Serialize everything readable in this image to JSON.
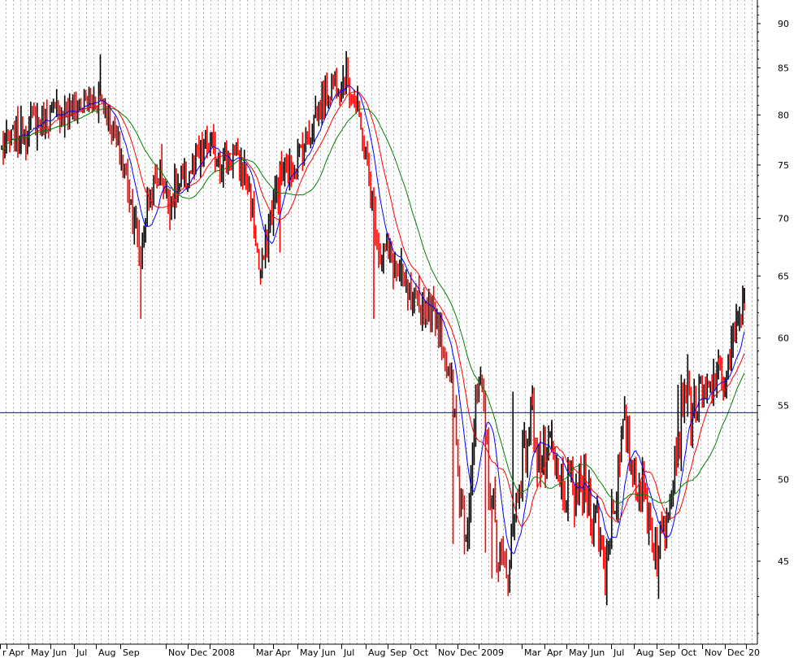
{
  "chart_data": {
    "type": "line",
    "y_scale": "log",
    "ylim": [
      40.5,
      95
    ],
    "yticks": [
      45,
      50,
      55,
      60,
      65,
      70,
      75,
      80,
      85,
      90
    ],
    "ytick_labels": [
      "45",
      "50",
      "55",
      "60",
      "65",
      "70",
      "75",
      "80",
      "85",
      "90"
    ],
    "xtick_labels": [
      "r",
      "Apr",
      "May",
      "Jun",
      "Jul",
      "Aug",
      "Sep",
      "Nov",
      "Dec",
      "2008",
      "Mar",
      "Apr",
      "May",
      "Jun",
      "Jul",
      "Aug",
      "Sep",
      "Oct",
      "Nov",
      "Dec",
      "2009",
      "Mar",
      "Apr",
      "May",
      "Jun",
      "Jul",
      "Aug",
      "Sep",
      "Oct",
      "Nov",
      "Dec",
      "20"
    ],
    "grid": {
      "vertical_dashed": true,
      "horizontal": false
    },
    "horizontal_line": {
      "value": 54.5,
      "color": "#0000ff"
    },
    "colors": {
      "up_bar": "#000000",
      "down_bar": "#ff0000",
      "ma_short": "#0000ff",
      "ma_mid": "#ff0000",
      "ma_long": "#008000",
      "grid": "#b0b0b0"
    },
    "price_path": [
      [
        0,
        76.5
      ],
      [
        4,
        79
      ],
      [
        8,
        80
      ],
      [
        12,
        81
      ],
      [
        15,
        82
      ],
      [
        17,
        78
      ],
      [
        19,
        73
      ],
      [
        20,
        70
      ],
      [
        21,
        66.5
      ],
      [
        22,
        71.5
      ],
      [
        24,
        74.5
      ],
      [
        25,
        71.5
      ],
      [
        27,
        73
      ],
      [
        29,
        75
      ],
      [
        31,
        77
      ],
      [
        33,
        75.5
      ],
      [
        35,
        76
      ],
      [
        37,
        73.5
      ],
      [
        38,
        70
      ],
      [
        39,
        64.5
      ],
      [
        40,
        68.5
      ],
      [
        42,
        74
      ],
      [
        44,
        75
      ],
      [
        46,
        77.5
      ],
      [
        48,
        81
      ],
      [
        50,
        83.5
      ],
      [
        52,
        84
      ],
      [
        53,
        82
      ],
      [
        54,
        79
      ],
      [
        55,
        75.5
      ],
      [
        56,
        70.5
      ],
      [
        57,
        67
      ],
      [
        58,
        67.5
      ],
      [
        60,
        65
      ],
      [
        62,
        62.5
      ],
      [
        64,
        62.5
      ],
      [
        66,
        61.5
      ],
      [
        67,
        58
      ],
      [
        68,
        55.5
      ],
      [
        69,
        49.5
      ],
      [
        70,
        47
      ],
      [
        71,
        52
      ],
      [
        72,
        56.5
      ],
      [
        73,
        52.5
      ],
      [
        74,
        48
      ],
      [
        75,
        45.5
      ],
      [
        76,
        44
      ],
      [
        77,
        46.5
      ],
      [
        78,
        50
      ],
      [
        79,
        52
      ],
      [
        80,
        54.5
      ],
      [
        81,
        51.5
      ],
      [
        82,
        51
      ],
      [
        83,
        51.5
      ],
      [
        84,
        49.5
      ],
      [
        86,
        49
      ],
      [
        88,
        49.5
      ],
      [
        89,
        48.5
      ],
      [
        90,
        47
      ],
      [
        91,
        44.5
      ],
      [
        92,
        48
      ],
      [
        93,
        50.5
      ],
      [
        94,
        53.5
      ],
      [
        95,
        51
      ],
      [
        96,
        50
      ],
      [
        97,
        49
      ],
      [
        98,
        47
      ],
      [
        99,
        45.2
      ],
      [
        100,
        47.5
      ],
      [
        101,
        50.5
      ],
      [
        102,
        53
      ],
      [
        103,
        56.5
      ],
      [
        104,
        54.5
      ],
      [
        105,
        55.5
      ],
      [
        106,
        55
      ],
      [
        107,
        56
      ],
      [
        108,
        57.5
      ],
      [
        109,
        56.5
      ],
      [
        110,
        59
      ],
      [
        111,
        61
      ],
      [
        112,
        63
      ]
    ],
    "spikes": [
      [
        15,
        86.5
      ],
      [
        39,
        65.5
      ],
      [
        64,
        61.5
      ],
      [
        68,
        46
      ],
      [
        73,
        45.5
      ],
      [
        74,
        44
      ],
      [
        75,
        43.8
      ],
      [
        77,
        56
      ],
      [
        80,
        55
      ],
      [
        83,
        54
      ],
      [
        89,
        46
      ],
      [
        94,
        55
      ],
      [
        102,
        56.5
      ],
      [
        108,
        58
      ],
      [
        112,
        64
      ],
      [
        42,
        67
      ],
      [
        21,
        61.5
      ],
      [
        56,
        61.5
      ]
    ]
  }
}
